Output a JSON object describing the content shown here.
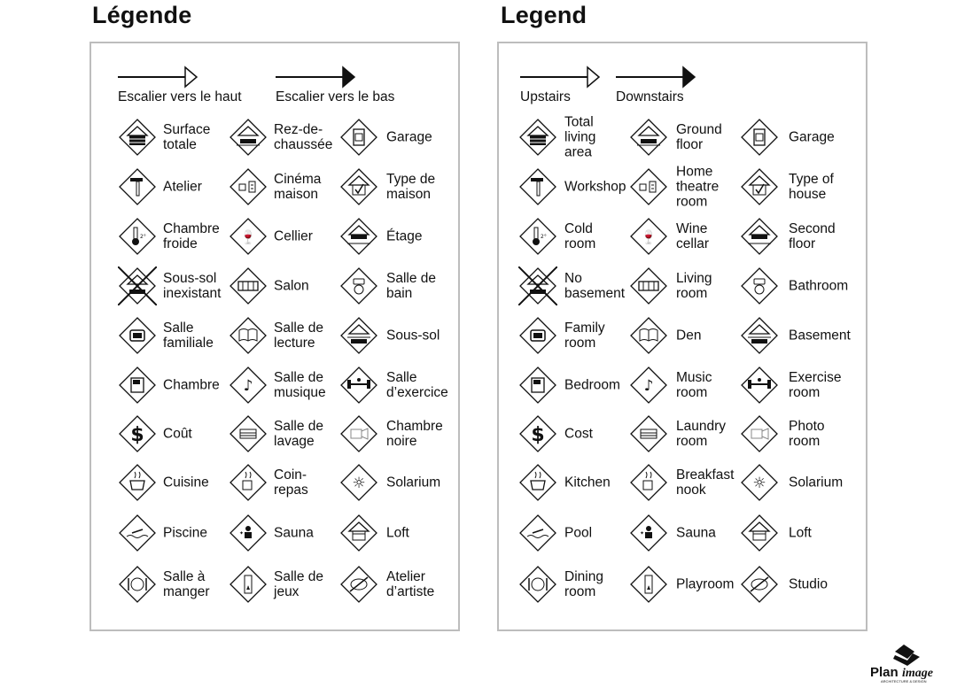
{
  "panels": [
    {
      "title": "Légende",
      "stairs_up": "Escalier vers le haut",
      "stairs_down": "Escalier vers le bas",
      "items": [
        "Surface\ntotale",
        "Rez-de-\nchaussée",
        "Garage",
        "Atelier",
        "Cinéma\nmaison",
        "Type de\nmaison",
        "Chambre\nfroide",
        "Cellier",
        "Étage",
        "Sous-sol\ninexistant",
        "Salon",
        "Salle de\nbain",
        "Salle\nfamiliale",
        "Salle de\nlecture",
        "Sous-sol",
        "Chambre",
        "Salle de\nmusique",
        "Salle\nd’exercice",
        "Coût",
        "Salle de\nlavage",
        "Chambre\nnoire",
        "Cuisine",
        "Coin-\nrepas",
        "Solarium",
        "Piscine",
        "Sauna",
        "Loft",
        "Salle à\nmanger",
        "Salle de\njeux",
        "Atelier\nd’artiste"
      ]
    },
    {
      "title": "Legend",
      "stairs_up": "Upstairs",
      "stairs_down": "Downstairs",
      "items": [
        "Total\nliving\narea",
        "Ground\nfloor",
        "Garage",
        "Workshop",
        "Home\ntheatre\nroom",
        "Type of\nhouse",
        "Cold\nroom",
        "Wine\ncellar",
        "Second\nfloor",
        "No\nbasement",
        "Living\nroom",
        "Bathroom",
        "Family\nroom",
        "Den",
        "Basement",
        "Bedroom",
        "Music\nroom",
        "Exercise\nroom",
        "Cost",
        "Laundry\nroom",
        "Photo\nroom",
        "Kitchen",
        "Breakfast\nnook",
        "Solarium",
        "Pool",
        "Sauna",
        "Loft",
        "Dining\nroom",
        "Playroom",
        "Studio"
      ]
    }
  ],
  "icons": [
    "total-living-area",
    "ground-floor",
    "garage",
    "workshop",
    "home-theatre",
    "type-of-house",
    "cold-room",
    "wine-cellar",
    "second-floor",
    "no-basement",
    "living-room",
    "bathroom",
    "family-room",
    "den",
    "basement",
    "bedroom",
    "music",
    "exercise",
    "cost",
    "laundry",
    "photo",
    "kitchen",
    "breakfast-nook",
    "solarium",
    "pool",
    "sauna",
    "loft",
    "dining-room",
    "playroom",
    "studio"
  ],
  "logo": {
    "name": "PlanImage",
    "tagline": "ARCHITECTURE & DESIGN"
  }
}
